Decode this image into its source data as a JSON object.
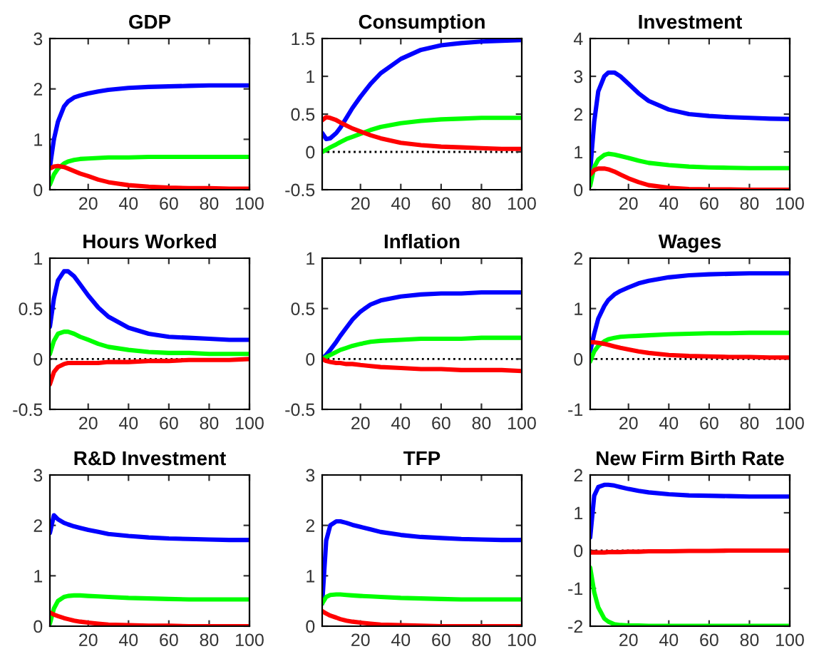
{
  "chart_data": [
    {
      "type": "line",
      "title": "GDP",
      "x": [
        1,
        3,
        5,
        8,
        10,
        13,
        16,
        20,
        25,
        30,
        40,
        50,
        60,
        70,
        80,
        90,
        100
      ],
      "xlim": [
        1,
        100
      ],
      "xticks": [
        20,
        40,
        60,
        80,
        100
      ],
      "ylim": [
        0,
        3
      ],
      "yticks": [
        0,
        1,
        2,
        3
      ],
      "series": [
        {
          "color": "#0000ff",
          "values": [
            0.45,
            1.0,
            1.35,
            1.65,
            1.75,
            1.83,
            1.87,
            1.91,
            1.95,
            1.98,
            2.02,
            2.04,
            2.05,
            2.06,
            2.07,
            2.07,
            2.07
          ]
        },
        {
          "color": "#00ff00",
          "values": [
            0.1,
            0.3,
            0.42,
            0.52,
            0.56,
            0.59,
            0.61,
            0.62,
            0.63,
            0.64,
            0.64,
            0.65,
            0.65,
            0.65,
            0.65,
            0.65,
            0.65
          ]
        },
        {
          "color": "#ff0000",
          "values": [
            0.42,
            0.46,
            0.47,
            0.45,
            0.42,
            0.37,
            0.32,
            0.27,
            0.2,
            0.15,
            0.09,
            0.06,
            0.04,
            0.03,
            0.03,
            0.02,
            0.02
          ]
        }
      ]
    },
    {
      "type": "line",
      "title": "Consumption",
      "x": [
        1,
        3,
        5,
        8,
        10,
        13,
        16,
        20,
        25,
        30,
        40,
        50,
        60,
        70,
        80,
        90,
        100
      ],
      "xlim": [
        1,
        100
      ],
      "xticks": [
        20,
        40,
        60,
        80,
        100
      ],
      "ylim": [
        -0.5,
        1.5
      ],
      "yticks": [
        -0.5,
        0,
        0.5,
        1,
        1.5
      ],
      "ref_lines": [
        {
          "axis": "y",
          "value": 0,
          "color": "#000000",
          "line_style": "dotted"
        }
      ],
      "series": [
        {
          "color": "#0000ff",
          "values": [
            0.25,
            0.17,
            0.18,
            0.25,
            0.32,
            0.45,
            0.58,
            0.73,
            0.9,
            1.04,
            1.23,
            1.35,
            1.41,
            1.44,
            1.46,
            1.47,
            1.48
          ]
        },
        {
          "color": "#00ff00",
          "values": [
            0.0,
            0.03,
            0.06,
            0.1,
            0.13,
            0.17,
            0.2,
            0.24,
            0.29,
            0.33,
            0.38,
            0.41,
            0.43,
            0.44,
            0.45,
            0.45,
            0.45
          ]
        },
        {
          "color": "#ff0000",
          "values": [
            0.42,
            0.46,
            0.45,
            0.42,
            0.39,
            0.35,
            0.31,
            0.27,
            0.22,
            0.18,
            0.12,
            0.09,
            0.07,
            0.06,
            0.05,
            0.04,
            0.04
          ]
        }
      ]
    },
    {
      "type": "line",
      "title": "Investment",
      "x": [
        1,
        3,
        5,
        8,
        10,
        13,
        16,
        20,
        25,
        30,
        40,
        50,
        60,
        70,
        80,
        90,
        100
      ],
      "xlim": [
        1,
        100
      ],
      "xticks": [
        20,
        40,
        60,
        80,
        100
      ],
      "ylim": [
        0,
        4
      ],
      "yticks": [
        0,
        1,
        2,
        3,
        4
      ],
      "series": [
        {
          "color": "#0000ff",
          "values": [
            0.5,
            1.8,
            2.6,
            3.0,
            3.1,
            3.1,
            3.0,
            2.8,
            2.55,
            2.35,
            2.12,
            2.0,
            1.95,
            1.92,
            1.9,
            1.88,
            1.87
          ]
        },
        {
          "color": "#00ff00",
          "values": [
            0.1,
            0.6,
            0.8,
            0.92,
            0.95,
            0.93,
            0.89,
            0.84,
            0.77,
            0.71,
            0.65,
            0.61,
            0.59,
            0.58,
            0.57,
            0.57,
            0.57
          ]
        },
        {
          "color": "#ff0000",
          "values": [
            0.4,
            0.52,
            0.56,
            0.56,
            0.54,
            0.48,
            0.4,
            0.3,
            0.2,
            0.12,
            0.05,
            0.02,
            0.01,
            0.01,
            0.0,
            0.0,
            0.0
          ]
        }
      ]
    },
    {
      "type": "line",
      "title": "Hours Worked",
      "x": [
        1,
        3,
        5,
        8,
        10,
        13,
        16,
        20,
        25,
        30,
        40,
        50,
        60,
        70,
        80,
        90,
        100
      ],
      "xlim": [
        1,
        100
      ],
      "xticks": [
        20,
        40,
        60,
        80,
        100
      ],
      "ylim": [
        -0.5,
        1
      ],
      "yticks": [
        -0.5,
        0,
        0.5,
        1
      ],
      "ref_lines": [
        {
          "axis": "y",
          "value": 0,
          "color": "#000000",
          "line_style": "dotted"
        }
      ],
      "series": [
        {
          "color": "#0000ff",
          "values": [
            0.32,
            0.6,
            0.78,
            0.87,
            0.87,
            0.82,
            0.74,
            0.63,
            0.51,
            0.42,
            0.31,
            0.25,
            0.22,
            0.21,
            0.2,
            0.19,
            0.19
          ]
        },
        {
          "color": "#00ff00",
          "values": [
            0.05,
            0.18,
            0.25,
            0.27,
            0.27,
            0.25,
            0.22,
            0.19,
            0.15,
            0.12,
            0.09,
            0.07,
            0.06,
            0.06,
            0.05,
            0.05,
            0.05
          ]
        },
        {
          "color": "#ff0000",
          "values": [
            -0.25,
            -0.13,
            -0.08,
            -0.05,
            -0.04,
            -0.04,
            -0.04,
            -0.04,
            -0.04,
            -0.03,
            -0.03,
            -0.02,
            -0.02,
            -0.01,
            -0.01,
            -0.01,
            0.0
          ]
        }
      ]
    },
    {
      "type": "line",
      "title": "Inflation",
      "x": [
        1,
        3,
        5,
        8,
        10,
        13,
        16,
        20,
        25,
        30,
        40,
        50,
        60,
        70,
        80,
        90,
        100
      ],
      "xlim": [
        1,
        100
      ],
      "xticks": [
        20,
        40,
        60,
        80,
        100
      ],
      "ylim": [
        -0.5,
        1
      ],
      "yticks": [
        -0.5,
        0,
        0.5,
        1
      ],
      "ref_lines": [
        {
          "axis": "y",
          "value": 0,
          "color": "#000000",
          "line_style": "dotted"
        }
      ],
      "series": [
        {
          "color": "#0000ff",
          "values": [
            0.0,
            0.04,
            0.09,
            0.17,
            0.23,
            0.31,
            0.39,
            0.47,
            0.54,
            0.58,
            0.62,
            0.64,
            0.65,
            0.65,
            0.66,
            0.66,
            0.66
          ]
        },
        {
          "color": "#00ff00",
          "values": [
            0.0,
            0.02,
            0.04,
            0.07,
            0.09,
            0.11,
            0.13,
            0.15,
            0.17,
            0.18,
            0.19,
            0.2,
            0.2,
            0.2,
            0.21,
            0.21,
            0.21
          ]
        },
        {
          "color": "#ff0000",
          "values": [
            0.0,
            -0.02,
            -0.03,
            -0.04,
            -0.04,
            -0.05,
            -0.05,
            -0.06,
            -0.07,
            -0.08,
            -0.09,
            -0.1,
            -0.1,
            -0.11,
            -0.11,
            -0.11,
            -0.12
          ]
        }
      ]
    },
    {
      "type": "line",
      "title": "Wages",
      "x": [
        1,
        3,
        5,
        8,
        10,
        13,
        16,
        20,
        25,
        30,
        40,
        50,
        60,
        70,
        80,
        90,
        100
      ],
      "xlim": [
        1,
        100
      ],
      "xticks": [
        20,
        40,
        60,
        80,
        100
      ],
      "ylim": [
        -1,
        2
      ],
      "yticks": [
        -1,
        0,
        1,
        2
      ],
      "ref_lines": [
        {
          "axis": "y",
          "value": 0,
          "color": "#000000",
          "line_style": "dotted"
        }
      ],
      "series": [
        {
          "color": "#0000ff",
          "values": [
            0.15,
            0.5,
            0.8,
            1.05,
            1.17,
            1.28,
            1.35,
            1.42,
            1.5,
            1.55,
            1.62,
            1.66,
            1.68,
            1.69,
            1.7,
            1.7,
            1.7
          ]
        },
        {
          "color": "#00ff00",
          "values": [
            -0.05,
            0.15,
            0.26,
            0.35,
            0.39,
            0.42,
            0.44,
            0.45,
            0.46,
            0.47,
            0.49,
            0.5,
            0.51,
            0.51,
            0.52,
            0.52,
            0.52
          ]
        },
        {
          "color": "#ff0000",
          "values": [
            0.33,
            0.33,
            0.32,
            0.3,
            0.28,
            0.25,
            0.22,
            0.19,
            0.15,
            0.12,
            0.08,
            0.06,
            0.05,
            0.04,
            0.04,
            0.03,
            0.03
          ]
        }
      ]
    },
    {
      "type": "line",
      "title": "R&D Investment",
      "x": [
        1,
        3,
        5,
        8,
        10,
        13,
        16,
        20,
        25,
        30,
        40,
        50,
        60,
        70,
        80,
        90,
        100
      ],
      "xlim": [
        1,
        100
      ],
      "xticks": [
        20,
        40,
        60,
        80,
        100
      ],
      "ylim": [
        0,
        3
      ],
      "yticks": [
        0,
        1,
        2,
        3
      ],
      "series": [
        {
          "color": "#0000ff",
          "values": [
            1.85,
            2.2,
            2.12,
            2.05,
            2.02,
            1.98,
            1.95,
            1.91,
            1.87,
            1.83,
            1.79,
            1.76,
            1.74,
            1.73,
            1.72,
            1.71,
            1.71
          ]
        },
        {
          "color": "#00ff00",
          "values": [
            0.05,
            0.35,
            0.5,
            0.58,
            0.6,
            0.61,
            0.61,
            0.6,
            0.59,
            0.58,
            0.56,
            0.55,
            0.54,
            0.53,
            0.53,
            0.53,
            0.53
          ]
        },
        {
          "color": "#ff0000",
          "values": [
            0.27,
            0.23,
            0.2,
            0.16,
            0.14,
            0.11,
            0.09,
            0.07,
            0.05,
            0.03,
            0.02,
            0.01,
            0.01,
            0.0,
            0.0,
            0.0,
            0.0
          ]
        }
      ]
    },
    {
      "type": "line",
      "title": "TFP",
      "x": [
        1,
        3,
        5,
        8,
        10,
        13,
        16,
        20,
        25,
        30,
        40,
        50,
        60,
        70,
        80,
        90,
        100
      ],
      "xlim": [
        1,
        100
      ],
      "xticks": [
        20,
        40,
        60,
        80,
        100
      ],
      "ylim": [
        0,
        3
      ],
      "yticks": [
        0,
        1,
        2,
        3
      ],
      "series": [
        {
          "color": "#0000ff",
          "values": [
            0.45,
            1.7,
            2.0,
            2.08,
            2.08,
            2.05,
            2.01,
            1.97,
            1.92,
            1.87,
            1.81,
            1.77,
            1.75,
            1.73,
            1.72,
            1.71,
            1.71
          ]
        },
        {
          "color": "#00ff00",
          "values": [
            0.45,
            0.58,
            0.62,
            0.63,
            0.63,
            0.62,
            0.61,
            0.6,
            0.59,
            0.58,
            0.56,
            0.55,
            0.54,
            0.53,
            0.53,
            0.53,
            0.53
          ]
        },
        {
          "color": "#ff0000",
          "values": [
            0.3,
            0.25,
            0.21,
            0.17,
            0.14,
            0.11,
            0.09,
            0.07,
            0.05,
            0.03,
            0.02,
            0.01,
            0.0,
            0.0,
            0.0,
            0.0,
            0.0
          ]
        }
      ]
    },
    {
      "type": "line",
      "title": "New Firm Birth Rate",
      "x": [
        1,
        3,
        5,
        8,
        10,
        13,
        16,
        20,
        25,
        30,
        40,
        50,
        60,
        70,
        80,
        90,
        100
      ],
      "xlim": [
        1,
        100
      ],
      "xticks": [
        20,
        40,
        60,
        80,
        100
      ],
      "ylim": [
        -2,
        2
      ],
      "yticks": [
        -2,
        -1,
        0,
        1,
        2
      ],
      "ref_lines": [
        {
          "axis": "y",
          "value": 0,
          "color": "#000000",
          "line_style": "dotted"
        }
      ],
      "series": [
        {
          "color": "#0000ff",
          "values": [
            0.35,
            1.45,
            1.68,
            1.74,
            1.74,
            1.72,
            1.68,
            1.63,
            1.58,
            1.54,
            1.49,
            1.46,
            1.45,
            1.44,
            1.43,
            1.43,
            1.43
          ]
        },
        {
          "color": "#00ff00",
          "values": [
            -0.45,
            -1.1,
            -1.5,
            -1.8,
            -1.88,
            -1.95,
            -1.97,
            -1.98,
            -1.98,
            -1.99,
            -1.99,
            -1.99,
            -1.99,
            -1.99,
            -1.99,
            -1.99,
            -1.99
          ]
        },
        {
          "color": "#ff0000",
          "values": [
            -0.05,
            -0.05,
            -0.05,
            -0.05,
            -0.04,
            -0.04,
            -0.04,
            -0.03,
            -0.03,
            -0.02,
            -0.02,
            -0.01,
            -0.01,
            0.0,
            0.0,
            0.0,
            0.0
          ]
        }
      ]
    }
  ]
}
